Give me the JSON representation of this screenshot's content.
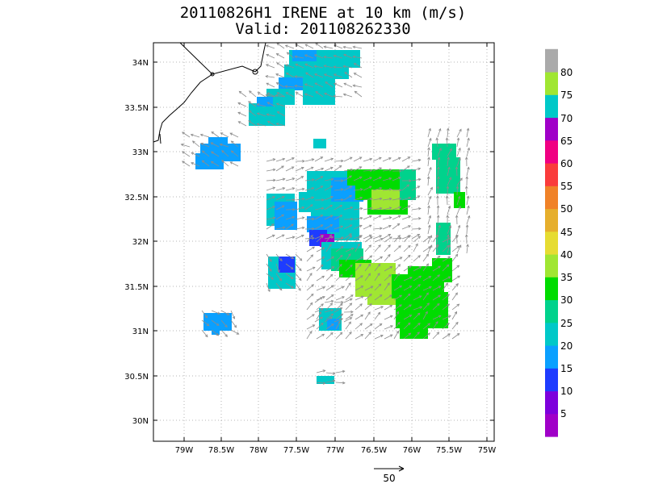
{
  "title": {
    "line1": "20110826H1 IRENE at 10 km (m/s)",
    "line2": "Valid: 201108262330"
  },
  "axes": {
    "lon_ticks": [
      "79W",
      "78.5W",
      "78W",
      "77.5W",
      "77W",
      "76.5W",
      "76W",
      "75.5W",
      "75W"
    ],
    "lat_ticks": [
      "34N",
      "33.5N",
      "33N",
      "32.5N",
      "32N",
      "31.5N",
      "31N",
      "30.5N",
      "30N"
    ]
  },
  "colorbar": {
    "labels": [
      "5",
      "10",
      "15",
      "20",
      "25",
      "30",
      "35",
      "40",
      "45",
      "50",
      "55",
      "60",
      "65",
      "70",
      "75",
      "80"
    ],
    "colors": [
      "#a000c8",
      "#7d00dc",
      "#1e3cff",
      "#0aa0ff",
      "#00c8c8",
      "#00d28c",
      "#00dc00",
      "#a0e632",
      "#e6dc32",
      "#e6af2d",
      "#f08228",
      "#fa3c3c",
      "#f00082",
      "#a000c8",
      "#00c8c8",
      "#a0e632",
      "#aaaaaa"
    ]
  },
  "reference_vector": {
    "label": "50"
  }
}
